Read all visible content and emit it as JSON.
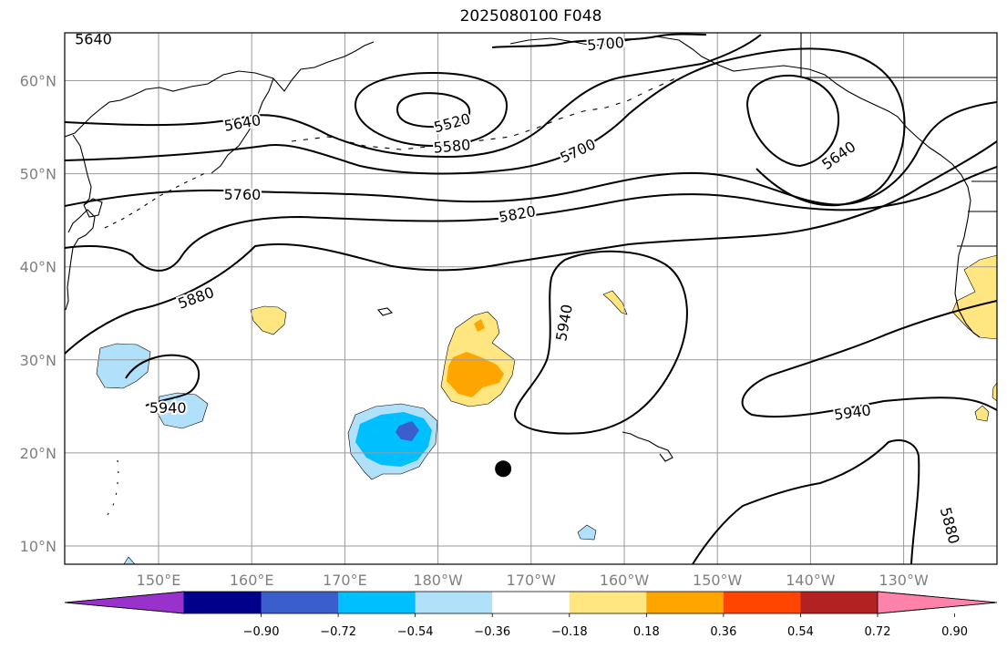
{
  "title": "2025080100 F048",
  "lat_ticks": [
    {
      "lat": 60,
      "label": "60°N"
    },
    {
      "lat": 50,
      "label": "50°N"
    },
    {
      "lat": 40,
      "label": "40°N"
    },
    {
      "lat": 30,
      "label": "30°N"
    },
    {
      "lat": 20,
      "label": "20°N"
    },
    {
      "lat": 10,
      "label": "10°N"
    }
  ],
  "lon_ticks": [
    {
      "lon": 150,
      "label": "150°E"
    },
    {
      "lon": 160,
      "label": "160°E"
    },
    {
      "lon": 170,
      "label": "170°E"
    },
    {
      "lon": 180,
      "label": "180°W"
    },
    {
      "lon": 190,
      "label": "170°W"
    },
    {
      "lon": 200,
      "label": "160°W"
    },
    {
      "lon": 210,
      "label": "150°W"
    },
    {
      "lon": 220,
      "label": "140°W"
    },
    {
      "lon": 230,
      "label": "130°W"
    }
  ],
  "contour_labels": [
    {
      "text": "5640",
      "lon": 143,
      "lat": 64.5,
      "angle": 0
    },
    {
      "text": "5700",
      "lon": 198,
      "lat": 64,
      "angle": -5
    },
    {
      "text": "5640",
      "lon": 159,
      "lat": 55.5,
      "angle": -10
    },
    {
      "text": "5520",
      "lon": 181.5,
      "lat": 55.5,
      "angle": -15
    },
    {
      "text": "5580",
      "lon": 181.5,
      "lat": 53,
      "angle": -5
    },
    {
      "text": "5700",
      "lon": 195,
      "lat": 52.5,
      "angle": -25
    },
    {
      "text": "5640",
      "lon": 223,
      "lat": 52,
      "angle": -35
    },
    {
      "text": "5760",
      "lon": 159,
      "lat": 47.8,
      "angle": 0
    },
    {
      "text": "5820",
      "lon": 188.5,
      "lat": 45.7,
      "angle": -10
    },
    {
      "text": "5880",
      "lon": 154,
      "lat": 36.7,
      "angle": -20
    },
    {
      "text": "5940",
      "lon": 193.5,
      "lat": 34,
      "angle": -80
    },
    {
      "text": "5940",
      "lon": 151,
      "lat": 24.9,
      "angle": 0
    },
    {
      "text": "5940",
      "lon": 224.5,
      "lat": 24.4,
      "angle": -8
    },
    {
      "text": "5880",
      "lon": 235,
      "lat": 12.2,
      "angle": 75
    }
  ],
  "contour_levels": [
    5520,
    5580,
    5640,
    5700,
    5760,
    5820,
    5880,
    5940
  ],
  "colorbar": {
    "colors": [
      "#9932cc",
      "#00008b",
      "#3a5fcd",
      "#00bfff",
      "#b0e0fa",
      "#ffffff",
      "#ffe680",
      "#ffa500",
      "#ff4500",
      "#b22222",
      "#ff82ab"
    ],
    "tick_labels": [
      "−0.90",
      "−0.72",
      "−0.54",
      "−0.36",
      "−0.18",
      "0.18",
      "0.36",
      "0.54",
      "0.72",
      "0.90"
    ]
  },
  "anomaly_colors": {
    "light_yellow": "#ffe680",
    "orange": "#ffa500",
    "light_blue": "#b0e0fa",
    "deep_sky_blue": "#00bfff",
    "royal_blue": "#3a5fcd"
  },
  "marker": {
    "lon": 187,
    "lat": 18.3,
    "color": "#000000"
  },
  "grid_color": "#999999"
}
